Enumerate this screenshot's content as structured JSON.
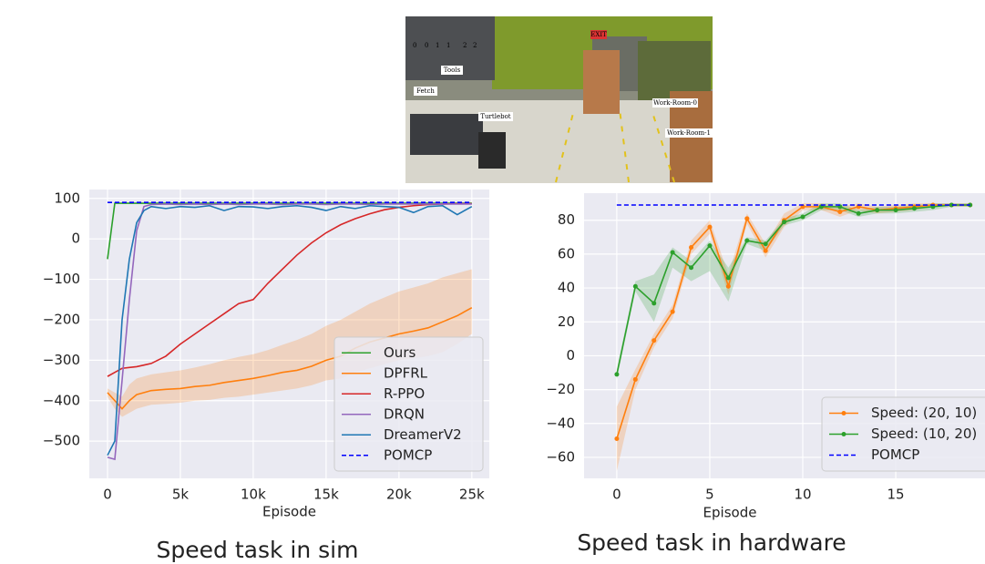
{
  "figure": {
    "tool_ids": [
      "0",
      "0",
      "1",
      "1",
      "2",
      "2"
    ],
    "labels": [
      "Tools",
      "Fetch",
      "Turtlebot",
      "Work-Room-0",
      "Work-Room-1",
      "EXIT"
    ]
  },
  "chart_data": [
    {
      "type": "line",
      "caption": "Speed task in sim",
      "x_label": "Episode",
      "x": [
        0,
        500,
        1000,
        1500,
        2000,
        2500,
        3000,
        4000,
        5000,
        6000,
        7000,
        8000,
        9000,
        10000,
        11000,
        12000,
        13000,
        14000,
        15000,
        16000,
        17000,
        18000,
        19000,
        20000,
        21000,
        22000,
        23000,
        24000,
        25000
      ],
      "xlim": [
        -1250,
        26200
      ],
      "xticks": [
        0,
        {
          "value": 5000,
          "label": "5k"
        },
        {
          "value": 10000,
          "label": "10k"
        },
        {
          "value": 15000,
          "label": "15k"
        },
        {
          "value": 20000,
          "label": "20k"
        },
        {
          "value": 25000,
          "label": "25k"
        }
      ],
      "ylim": [
        -592,
        122
      ],
      "yticks": [
        {
          "value": -500,
          "label": "−500"
        },
        {
          "value": -400,
          "label": "−400"
        },
        {
          "value": -300,
          "label": "−300"
        },
        {
          "value": -200,
          "label": "−200"
        },
        {
          "value": -100,
          "label": "−100"
        },
        0,
        100
      ],
      "grid": true,
      "legend": "lower right",
      "markers": false,
      "series": [
        {
          "name": "Ours",
          "color": "#2ca02c",
          "values": [
            -50,
            88,
            88,
            88,
            88,
            88,
            88,
            88,
            88,
            88,
            88,
            88,
            88,
            88,
            88,
            88,
            88,
            88,
            88,
            88,
            88,
            88,
            88,
            88,
            88,
            88,
            88,
            88,
            88
          ]
        },
        {
          "name": "DPFRL",
          "color": "#ff7f0e",
          "values": [
            -380,
            -400,
            -420,
            -400,
            -385,
            -380,
            -375,
            -372,
            -370,
            -365,
            -362,
            -355,
            -350,
            -345,
            -338,
            -330,
            -325,
            -315,
            -300,
            -290,
            -270,
            -255,
            -245,
            -235,
            -228,
            -220,
            -205,
            -190,
            -170
          ],
          "upper": [
            -370,
            -380,
            -390,
            -360,
            -345,
            -340,
            -335,
            -330,
            -325,
            -318,
            -310,
            -300,
            -292,
            -285,
            -275,
            -262,
            -250,
            -235,
            -215,
            -200,
            -180,
            -160,
            -145,
            -130,
            -120,
            -110,
            -95,
            -85,
            -75
          ],
          "lower": [
            -390,
            -420,
            -440,
            -430,
            -420,
            -415,
            -410,
            -408,
            -405,
            -400,
            -398,
            -393,
            -390,
            -385,
            -380,
            -375,
            -370,
            -362,
            -350,
            -345,
            -330,
            -320,
            -310,
            -300,
            -295,
            -290,
            -280,
            -260,
            -235
          ]
        },
        {
          "name": "R-PPO",
          "color": "#d62728",
          "values": [
            -340,
            -330,
            -320,
            -318,
            -316,
            -312,
            -308,
            -290,
            -260,
            -235,
            -210,
            -185,
            -160,
            -150,
            -110,
            -75,
            -40,
            -10,
            15,
            35,
            50,
            62,
            72,
            78,
            82,
            85,
            86,
            87,
            87
          ]
        },
        {
          "name": "DRQN",
          "color": "#9467bd",
          "values": [
            -540,
            -545,
            -350,
            -150,
            20,
            80,
            85,
            86,
            85,
            86,
            85,
            86,
            85,
            86,
            86,
            85,
            86,
            86,
            85,
            86,
            86,
            85,
            86,
            86,
            86,
            86,
            86,
            86,
            86
          ]
        },
        {
          "name": "DreamerV2",
          "color": "#1f77b4",
          "values": [
            -535,
            -500,
            -200,
            -50,
            40,
            70,
            80,
            75,
            80,
            78,
            82,
            70,
            80,
            79,
            75,
            80,
            82,
            78,
            70,
            80,
            75,
            82,
            80,
            78,
            65,
            80,
            82,
            60,
            80
          ]
        },
        {
          "name": "POMCP",
          "color": "#0000ff",
          "dash": true,
          "values": [
            90,
            90,
            90,
            90,
            90,
            90,
            90,
            90,
            90,
            90,
            90,
            90,
            90,
            90,
            90,
            90,
            90,
            90,
            90,
            90,
            90,
            90,
            90,
            90,
            90,
            90,
            90,
            90,
            90
          ]
        }
      ]
    },
    {
      "type": "line",
      "caption": "Speed task in hardware",
      "x_label": "Episode",
      "x": [
        0,
        1,
        2,
        3,
        4,
        5,
        6,
        7,
        8,
        9,
        10,
        11,
        12,
        13,
        14,
        15,
        16,
        17,
        18,
        19
      ],
      "xlim": [
        -1.76,
        19.8
      ],
      "xticks": [
        0,
        5,
        10,
        15
      ],
      "ylim": [
        -72.4,
        96
      ],
      "yticks": [
        {
          "value": -60,
          "label": "−60"
        },
        {
          "value": -40,
          "label": "−40"
        },
        {
          "value": -20,
          "label": "−20"
        },
        0,
        20,
        40,
        60,
        80
      ],
      "grid": true,
      "legend": "lower right",
      "markers": true,
      "series": [
        {
          "name": "Speed: (20, 10)",
          "color": "#ff7f0e",
          "values": [
            -49,
            -14,
            9,
            26,
            64,
            76,
            41,
            81,
            62,
            80,
            88,
            88,
            85,
            88,
            86,
            87,
            88,
            89,
            89,
            89
          ],
          "upper": [
            -30,
            -8,
            13,
            30,
            68,
            80,
            48,
            84,
            66,
            84,
            90,
            90,
            88,
            90,
            88,
            89,
            90,
            90,
            90,
            90
          ],
          "lower": [
            -68,
            -20,
            5,
            22,
            60,
            72,
            36,
            78,
            58,
            76,
            86,
            86,
            82,
            86,
            84,
            85,
            86,
            88,
            88,
            88
          ]
        },
        {
          "name": "Speed: (10, 20)",
          "color": "#2ca02c",
          "values": [
            -11,
            41,
            31,
            61,
            52,
            65,
            46,
            68,
            66,
            79,
            82,
            88,
            88,
            84,
            86,
            86,
            87,
            88,
            89,
            89
          ],
          "upper": [
            -8,
            44,
            48,
            64,
            56,
            68,
            52,
            70,
            68,
            81,
            84,
            90,
            90,
            86,
            88,
            88,
            89,
            90,
            90,
            90
          ],
          "lower": [
            -14,
            38,
            20,
            52,
            44,
            50,
            32,
            66,
            62,
            77,
            80,
            86,
            86,
            82,
            84,
            84,
            85,
            86,
            88,
            88
          ]
        },
        {
          "name": "POMCP",
          "color": "#0000ff",
          "dash": true,
          "nomarker": true,
          "values": [
            89,
            89,
            89,
            89,
            89,
            89,
            89,
            89,
            89,
            89,
            89,
            89,
            89,
            89,
            89,
            89,
            89,
            89,
            89,
            89
          ]
        }
      ]
    }
  ]
}
